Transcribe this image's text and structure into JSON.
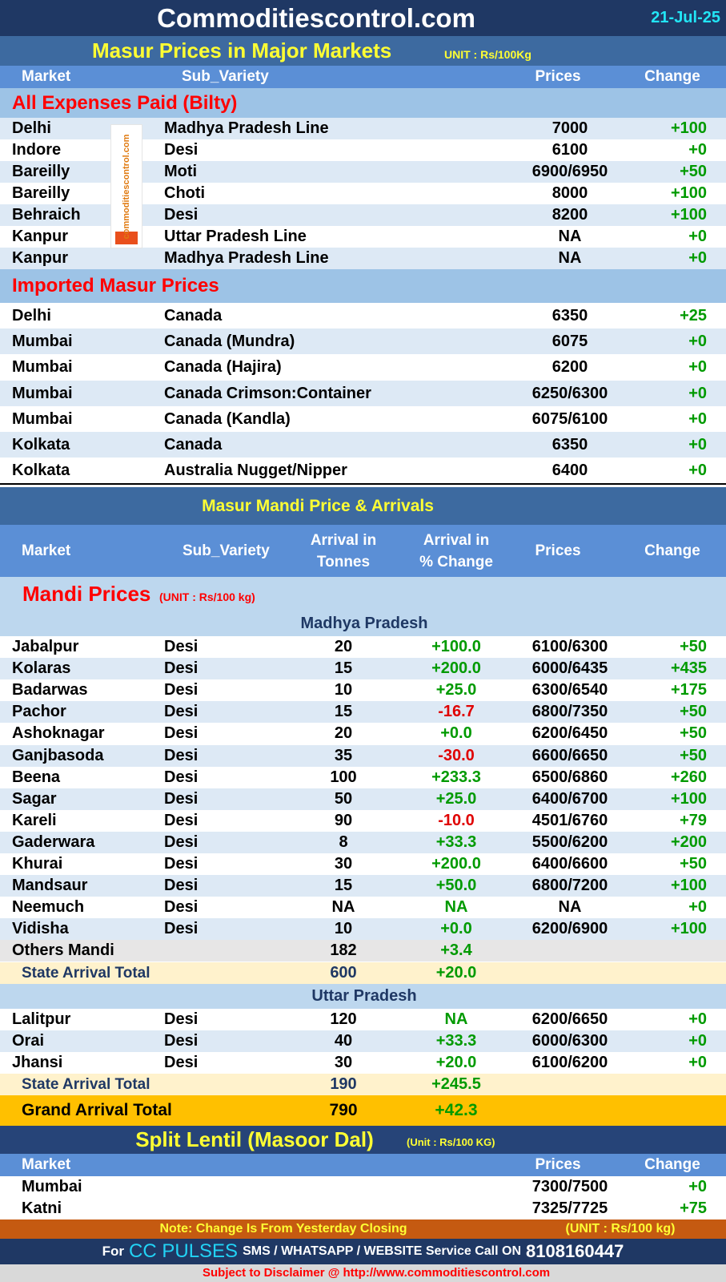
{
  "header": {
    "title": "Commoditiescontrol.com",
    "date": "21-Jul-25"
  },
  "logo": "commoditiescontrol.com",
  "major_markets": {
    "title": "Masur Prices in Major Markets",
    "unit": "UNIT : Rs/100Kg",
    "columns": [
      "Market",
      "Sub_Variety",
      "Prices",
      "Change"
    ],
    "sections": [
      {
        "title": "All Expenses Paid (Bilty)",
        "rows": [
          [
            "Delhi",
            "Madhya Pradesh Line",
            "7000",
            "+100"
          ],
          [
            "Indore",
            "Desi",
            "6100",
            "+0"
          ],
          [
            "Bareilly",
            "Moti",
            "6900/6950",
            "+50"
          ],
          [
            "Bareilly",
            "Choti",
            "8000",
            "+100"
          ],
          [
            "Behraich",
            "Desi",
            "8200",
            "+100"
          ],
          [
            "Kanpur",
            "Uttar Pradesh Line",
            "NA",
            "+0"
          ],
          [
            "Kanpur",
            "Madhya Pradesh Line",
            "NA",
            "+0"
          ]
        ]
      },
      {
        "title": "Imported Masur Prices",
        "rows": [
          [
            "Delhi",
            "Canada",
            "6350",
            "+25"
          ],
          [
            "Mumbai",
            "Canada (Mundra)",
            "6075",
            "+0"
          ],
          [
            "Mumbai",
            "Canada (Hajira)",
            "6200",
            "+0"
          ],
          [
            "Mumbai",
            "Canada Crimson:Container",
            "6250/6300",
            "+0"
          ],
          [
            "Mumbai",
            "Canada (Kandla)",
            "6075/6100",
            "+0"
          ],
          [
            "Kolkata",
            "Canada",
            "6350",
            "+0"
          ],
          [
            "Kolkata",
            "Australia Nugget/Nipper",
            "6400",
            "+0"
          ]
        ]
      }
    ]
  },
  "mandi": {
    "title": "Masur Mandi Price & Arrivals",
    "columns": [
      [
        "Market"
      ],
      [
        "Sub_Variety"
      ],
      [
        "Arrival in",
        "Tonnes"
      ],
      [
        "Arrival  in",
        "% Change"
      ],
      [
        "Prices"
      ],
      [
        "Change"
      ]
    ],
    "section_title": "Mandi Prices",
    "section_unit": "(UNIT : Rs/100 kg)",
    "states": [
      {
        "name": "Madhya Pradesh",
        "rows": [
          [
            "Jabalpur",
            "Desi",
            "20",
            "+100.0",
            "6100/6300",
            "+50"
          ],
          [
            "Kolaras",
            "Desi",
            "15",
            "+200.0",
            "6000/6435",
            "+435"
          ],
          [
            "Badarwas",
            "Desi",
            "10",
            "+25.0",
            "6300/6540",
            "+175"
          ],
          [
            "Pachor",
            "Desi",
            "15",
            "-16.7",
            "6800/7350",
            "+50"
          ],
          [
            "Ashoknagar",
            "Desi",
            "20",
            "+0.0",
            "6200/6450",
            "+50"
          ],
          [
            "Ganjbasoda",
            "Desi",
            "35",
            "-30.0",
            "6600/6650",
            "+50"
          ],
          [
            "Beena",
            "Desi",
            "100",
            "+233.3",
            "6500/6860",
            "+260"
          ],
          [
            "Sagar",
            "Desi",
            "50",
            "+25.0",
            "6400/6700",
            "+100"
          ],
          [
            "Kareli",
            "Desi",
            "90",
            "-10.0",
            "4501/6760",
            "+79"
          ],
          [
            "Gaderwara",
            "Desi",
            "8",
            "+33.3",
            "5500/6200",
            "+200"
          ],
          [
            "Khurai",
            "Desi",
            "30",
            "+200.0",
            "6400/6600",
            "+50"
          ],
          [
            "Mandsaur",
            "Desi",
            "15",
            "+50.0",
            "6800/7200",
            "+100"
          ],
          [
            "Neemuch",
            "Desi",
            "NA",
            "NA",
            "NA",
            "+0"
          ],
          [
            "Vidisha",
            "Desi",
            "10",
            "+0.0",
            "6200/6900",
            "+100"
          ]
        ],
        "others": [
          "Others Mandi",
          "182",
          "+3.4"
        ],
        "total": [
          "State Arrival Total",
          "600",
          "+20.0"
        ]
      },
      {
        "name": "Uttar Pradesh",
        "rows": [
          [
            "Lalitpur",
            "Desi",
            "120",
            "NA",
            "6200/6650",
            "+0"
          ],
          [
            "Orai",
            "Desi",
            "40",
            "+33.3",
            "6000/6300",
            "+0"
          ],
          [
            "Jhansi",
            "Desi",
            "30",
            "+20.0",
            "6100/6200",
            "+0"
          ]
        ],
        "total": [
          "State Arrival Total",
          "190",
          "+245.5"
        ]
      }
    ],
    "grand_total": [
      "Grand Arrival Total",
      "790",
      "+42.3"
    ]
  },
  "split_lentil": {
    "title": "Split Lentil (Masoor Dal)",
    "unit": "(Unit : Rs/100 KG)",
    "columns": [
      "Market",
      "Prices",
      "Change"
    ],
    "rows": [
      [
        "Mumbai",
        "7300/7500",
        "+0"
      ],
      [
        "Katni",
        "7325/7725",
        "+75"
      ]
    ]
  },
  "footer": {
    "note": "Note: Change Is From Yesterday Closing",
    "unit": "(UNIT : Rs/100 kg)",
    "cc_prefix": "For",
    "cc_brand": "CC PULSES",
    "cc_text": "SMS / WHATSAPP / WEBSITE Service Call  ON",
    "phone": "8108160447",
    "disclaimer": "Subject to Disclaimer @  http://www.commoditiescontrol.com"
  }
}
